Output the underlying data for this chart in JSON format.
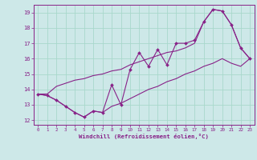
{
  "xlabel": "Windchill (Refroidissement éolien,°C)",
  "background_color": "#cde8e8",
  "grid_color": "#a8d8cc",
  "line_color": "#882288",
  "x_data": [
    0,
    1,
    2,
    3,
    4,
    5,
    6,
    7,
    8,
    9,
    10,
    11,
    12,
    13,
    14,
    15,
    16,
    17,
    18,
    19,
    20,
    21,
    22,
    23
  ],
  "y_main": [
    13.7,
    13.6,
    13.3,
    12.9,
    12.5,
    12.2,
    12.6,
    12.5,
    14.3,
    13.0,
    15.3,
    16.4,
    15.5,
    16.6,
    15.6,
    17.0,
    17.0,
    17.2,
    18.4,
    19.2,
    19.1,
    18.2,
    16.7,
    16.0
  ],
  "y_lo": [
    13.7,
    13.6,
    13.3,
    12.9,
    12.5,
    12.2,
    12.6,
    12.5,
    12.9,
    13.1,
    13.4,
    13.7,
    14.0,
    14.2,
    14.5,
    14.7,
    15.0,
    15.2,
    15.5,
    15.7,
    16.0,
    15.7,
    15.5,
    16.0
  ],
  "y_hi": [
    13.7,
    13.7,
    14.2,
    14.4,
    14.6,
    14.7,
    14.9,
    15.0,
    15.2,
    15.3,
    15.6,
    15.8,
    16.0,
    16.2,
    16.4,
    16.5,
    16.7,
    17.0,
    18.4,
    19.2,
    19.1,
    18.2,
    16.7,
    16.0
  ],
  "ylim": [
    11.7,
    19.5
  ],
  "xlim": [
    -0.5,
    23.5
  ],
  "yticks": [
    12,
    13,
    14,
    15,
    16,
    17,
    18,
    19
  ],
  "xticks": [
    0,
    1,
    2,
    3,
    4,
    5,
    6,
    7,
    8,
    9,
    10,
    11,
    12,
    13,
    14,
    15,
    16,
    17,
    18,
    19,
    20,
    21,
    22,
    23
  ]
}
